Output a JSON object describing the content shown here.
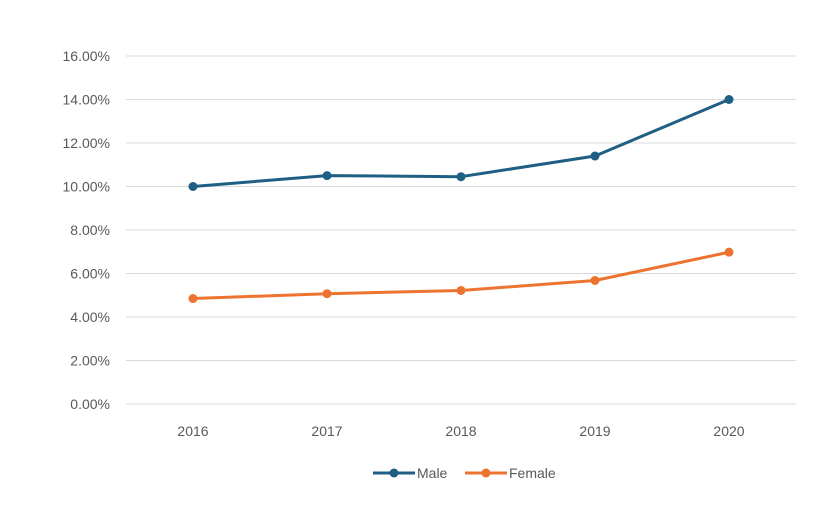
{
  "chart_data": {
    "type": "line",
    "categories": [
      "2016",
      "2017",
      "2018",
      "2019",
      "2020"
    ],
    "series": [
      {
        "name": "Male",
        "values": [
          10.0,
          10.5,
          10.45,
          11.4,
          14.0
        ],
        "color": "#1f5f84"
      },
      {
        "name": "Female",
        "values": [
          4.85,
          5.07,
          5.22,
          5.68,
          6.98
        ],
        "color": "#ec7430"
      }
    ],
    "ylim": [
      0,
      16
    ],
    "yticks": [
      "0.00%",
      "2.00%",
      "4.00%",
      "6.00%",
      "8.00%",
      "10.00%",
      "12.00%",
      "14.00%",
      "16.00%"
    ],
    "grid": true,
    "gridColor": "#d9d9d9",
    "legend": "bottom",
    "title": "",
    "xlabel": "",
    "ylabel": ""
  }
}
